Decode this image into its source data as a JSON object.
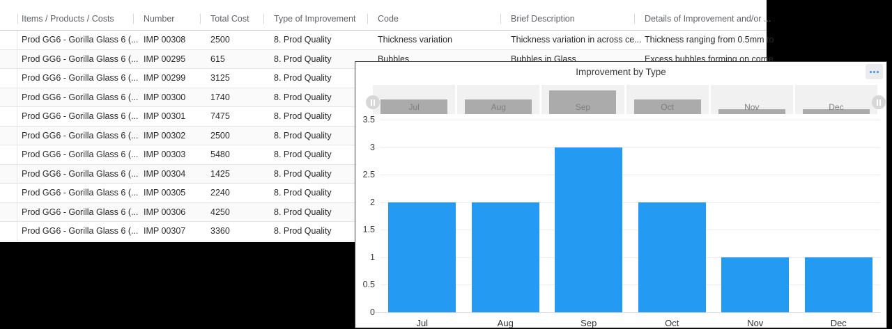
{
  "colors": {
    "bar_fill": "#259af3",
    "menu_dots": "#3e8ef7",
    "nav_bar": "#ababab",
    "window_bg": "#ffffff",
    "page_bg": "#000000"
  },
  "table": {
    "columns": [
      "Items / Products / Costs",
      "Number",
      "Total Cost",
      "Type of Improvement",
      "Code",
      "Brief Description",
      "Details of Improvement and/or ..."
    ],
    "rows": [
      {
        "item": "Prod GG6 - Gorilla Glass 6 (...",
        "number": "IMP 00308",
        "total_cost": "2500",
        "type": "8. Prod Quality",
        "code": "Thickness variation",
        "brief": "Thickness variation in across ce...",
        "details": "Thickness ranging from 0.5mm to"
      },
      {
        "item": "Prod GG6 - Gorilla Glass 6 (...",
        "number": "IMP 00295",
        "total_cost": "615",
        "type": "8. Prod Quality",
        "code": "Bubbles",
        "brief": "Bubbles in Glass",
        "details": "Excess bubbles forming on corne"
      },
      {
        "item": "Prod GG6 - Gorilla Glass 6 (...",
        "number": "IMP 00299",
        "total_cost": "3125",
        "type": "8. Prod Quality",
        "code": "",
        "brief": "",
        "details": ""
      },
      {
        "item": "Prod GG6 - Gorilla Glass 6 (...",
        "number": "IMP 00300",
        "total_cost": "1740",
        "type": "8. Prod Quality",
        "code": "",
        "brief": "",
        "details": ""
      },
      {
        "item": "Prod GG6 - Gorilla Glass 6 (...",
        "number": "IMP 00301",
        "total_cost": "7475",
        "type": "8. Prod Quality",
        "code": "",
        "brief": "",
        "details": ""
      },
      {
        "item": "Prod GG6 - Gorilla Glass 6 (...",
        "number": "IMP 00302",
        "total_cost": "2500",
        "type": "8. Prod Quality",
        "code": "",
        "brief": "",
        "details": ""
      },
      {
        "item": "Prod GG6 - Gorilla Glass 6 (...",
        "number": "IMP 00303",
        "total_cost": "5480",
        "type": "8. Prod Quality",
        "code": "",
        "brief": "",
        "details": ""
      },
      {
        "item": "Prod GG6 - Gorilla Glass 6 (...",
        "number": "IMP 00304",
        "total_cost": "1425",
        "type": "8. Prod Quality",
        "code": "",
        "brief": "",
        "details": ""
      },
      {
        "item": "Prod GG6 - Gorilla Glass 6 (...",
        "number": "IMP 00305",
        "total_cost": "2240",
        "type": "8. Prod Quality",
        "code": "",
        "brief": "",
        "details": ""
      },
      {
        "item": "Prod GG6 - Gorilla Glass 6 (...",
        "number": "IMP 00306",
        "total_cost": "4250",
        "type": "8. Prod Quality",
        "code": "",
        "brief": "",
        "details": ""
      },
      {
        "item": "Prod GG6 - Gorilla Glass 6 (...",
        "number": "IMP 00307",
        "total_cost": "3360",
        "type": "8. Prod Quality",
        "code": "",
        "brief": "",
        "details": ""
      }
    ]
  },
  "chart": {
    "title": "Improvement by Type",
    "menu_icon": "ellipsis-icon",
    "navigator_handle_icon": "pause-grip-icon"
  },
  "chart_data": {
    "type": "bar",
    "title": "Improvement by Type",
    "categories": [
      "Jul",
      "Aug",
      "Sep",
      "Oct",
      "Nov",
      "Dec"
    ],
    "values": [
      2,
      2,
      3,
      2,
      1,
      1
    ],
    "xlabel": "",
    "ylabel": "",
    "ylim": [
      0,
      3.5
    ],
    "ytick_step": 0.5,
    "yticks": [
      0,
      0.5,
      1,
      1.5,
      2,
      2.5,
      3,
      3.5
    ],
    "grid": true,
    "legend": false,
    "navigator": {
      "categories": [
        "Jul",
        "Aug",
        "Sep",
        "Oct",
        "Nov",
        "Dec"
      ],
      "values": [
        2,
        2,
        3,
        2,
        1,
        1
      ]
    }
  }
}
